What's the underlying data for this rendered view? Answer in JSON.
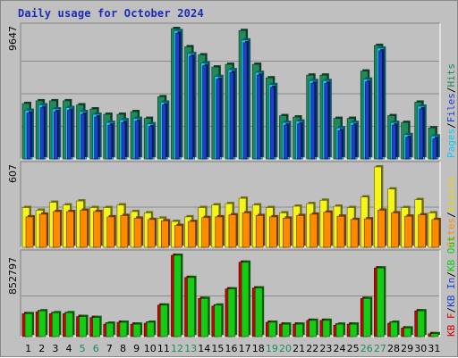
{
  "title": "Daily usage for October 2024",
  "colors": {
    "hits": "#1f8a5a",
    "files": "#15c8f0",
    "pages": "#1f3fd0",
    "visits": "#f5f51a",
    "sites": "#ff8a00",
    "kb_in": "#14cc14",
    "kb_out": "#d00000",
    "weekend": "#1f8a5a",
    "weekday": "#000000"
  },
  "panels": {
    "top": {
      "max_label": "9647"
    },
    "mid": {
      "max_label": "607"
    },
    "bot": {
      "max_label": "852797"
    }
  },
  "legends": {
    "top": [
      {
        "text": "Pages",
        "color": "#15c8f0"
      },
      {
        "text": "/",
        "color": "#000000"
      },
      {
        "text": "Files",
        "color": "#1f3fd0"
      },
      {
        "text": "/",
        "color": "#000000"
      },
      {
        "text": "Hits",
        "color": "#1f8a5a"
      }
    ],
    "mid": [
      {
        "text": "Sites",
        "color": "#ff8a00"
      },
      {
        "text": "/",
        "color": "#000000"
      },
      {
        "text": "Visits",
        "color": "#e6d800"
      }
    ],
    "bot": [
      {
        "text": "KB F",
        "color": "#d00000"
      },
      {
        "text": "/",
        "color": "#000000"
      },
      {
        "text": "KB In",
        "color": "#1f3fd0"
      },
      {
        "text": "/",
        "color": "#000000"
      },
      {
        "text": "KB Out",
        "color": "#14cc14"
      }
    ]
  },
  "chart_data": {
    "type": "bar",
    "categories": [
      "1",
      "2",
      "3",
      "4",
      "5",
      "6",
      "7",
      "8",
      "9",
      "10",
      "11",
      "12",
      "13",
      "14",
      "15",
      "16",
      "17",
      "18",
      "19",
      "20",
      "21",
      "22",
      "23",
      "24",
      "25",
      "26",
      "27",
      "28",
      "29",
      "30",
      "31"
    ],
    "weekend_days": [
      "5",
      "6",
      "12",
      "13",
      "19",
      "20",
      "26",
      "27"
    ],
    "panels": [
      {
        "id": "top",
        "ylim": [
          0,
          9647
        ],
        "series": [
          {
            "name": "Hits",
            "values": [
              4100,
              4300,
              4300,
              4300,
              4000,
              3700,
              3300,
              3300,
              3500,
              3000,
              4600,
              9647,
              8300,
              7700,
              6800,
              7000,
              9500,
              7000,
              6000,
              3200,
              3100,
              6200,
              6200,
              3000,
              3000,
              6500,
              8400,
              3200,
              2700,
              4200,
              2300
            ]
          },
          {
            "name": "Files",
            "values": [
              3600,
              4000,
              3700,
              3800,
              3500,
              3300,
              2700,
              2900,
              3000,
              2600,
              4200,
              9500,
              7800,
              7100,
              6100,
              6600,
              8800,
              6400,
              5500,
              2700,
              2800,
              5800,
              5800,
              2300,
              2700,
              5900,
              8200,
              2700,
              1800,
              3900,
              1700
            ]
          },
          {
            "name": "Pages",
            "values": [
              3400,
              3800,
              3500,
              3600,
              3300,
              3100,
              2500,
              2700,
              2800,
              2400,
              4000,
              9300,
              7600,
              6900,
              5900,
              6400,
              8600,
              6200,
              5300,
              2500,
              2600,
              5600,
              5600,
              2100,
              2500,
              5700,
              8000,
              2500,
              1600,
              3700,
              1500
            ]
          }
        ]
      },
      {
        "id": "mid",
        "ylim": [
          0,
          607
        ],
        "series": [
          {
            "name": "Visits",
            "values": [
              300,
              280,
              340,
              320,
              350,
              300,
              300,
              320,
              270,
              260,
              220,
              195,
              230,
              300,
              320,
              330,
              370,
              320,
              300,
              260,
              310,
              330,
              355,
              310,
              300,
              380,
              607,
              440,
              300,
              360,
              260
            ]
          },
          {
            "name": "Sites",
            "values": [
              230,
              250,
              270,
              270,
              280,
              270,
              230,
              240,
              220,
              210,
              200,
              165,
              195,
              225,
              230,
              245,
              260,
              240,
              230,
              220,
              240,
              250,
              265,
              235,
              210,
              215,
              280,
              260,
              235,
              245,
              210
            ]
          }
        ]
      },
      {
        "id": "bot",
        "ylim": [
          0,
          852797
        ],
        "series": [
          {
            "name": "KB F",
            "values": [
              240000,
              260000,
              240000,
              240000,
              210000,
              200000,
              130000,
              150000,
              130000,
              140000,
              330000,
              852797,
              620000,
              400000,
              320000,
              500000,
              780000,
              510000,
              150000,
              130000,
              130000,
              170000,
              170000,
              120000,
              130000,
              400000,
              720000,
              140000,
              90000,
              270000,
              30000
            ]
          },
          {
            "name": "KB In",
            "values": [
              240000,
              270000,
              250000,
              250000,
              210000,
              200000,
              140000,
              150000,
              130000,
              150000,
              330000,
              852797,
              620000,
              400000,
              330000,
              500000,
              780000,
              510000,
              150000,
              130000,
              130000,
              170000,
              170000,
              130000,
              130000,
              400000,
              720000,
              150000,
              90000,
              270000,
              30000
            ]
          }
        ]
      }
    ]
  }
}
